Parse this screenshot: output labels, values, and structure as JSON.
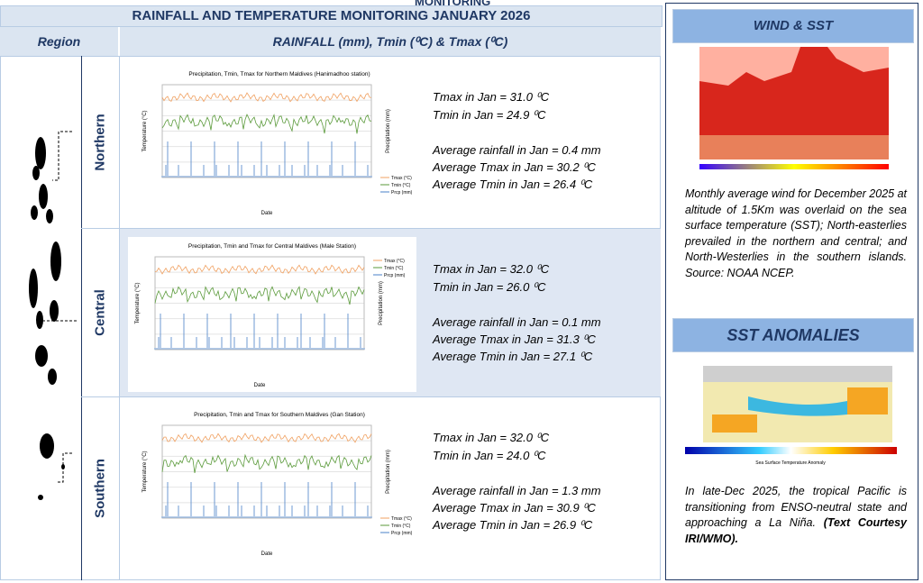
{
  "header": {
    "cut_title": "MONITORING",
    "title": "RAINFALL AND TEMPERATURE MONITORING JANUARY 2026",
    "region_col": "Region",
    "data_col": "RAINFALL (mm), Tmin (⁰C) & Tmax (⁰C)"
  },
  "regions": [
    {
      "name": "Northern",
      "chart_title": "Precipitation, Tmin, Tmax for Northern Maldives (Hanimadhoo station)",
      "chart_x_label": "Date",
      "chart_y_label": "Temperature (°C)",
      "chart_y2_label": "Precipitation (mm)",
      "chart_legend": [
        "Tmax (°C)",
        "Tmin (°C)",
        "Prcp (mm)"
      ],
      "stats": [
        "Tmax in Jan = 31.0 ⁰C",
        "Tmin in Jan = 24.9 ⁰C",
        "Average rainfall in Jan = 0.4 mm",
        "Average Tmax in Jan = 30.2 ⁰C",
        "Average Tmin in Jan = 26.4 ⁰C"
      ]
    },
    {
      "name": "Central",
      "chart_title": "Precipitation, Tmin and Tmax for Central Maldives (Male Station)",
      "chart_x_label": "Date",
      "chart_y_label": "Temperature (°C)",
      "chart_y2_label": "Precipitation (mm)",
      "chart_legend": [
        "Tmax (°C)",
        "Tmin (°C)",
        "Prcp (mm)"
      ],
      "stats": [
        "Tmax in Jan = 32.0 ⁰C",
        "Tmin in Jan = 26.0 ⁰C",
        "Average rainfall in Jan = 0.1 mm",
        "Average Tmax in Jan = 31.3 ⁰C",
        "Average Tmin in Jan = 27.1 ⁰C"
      ]
    },
    {
      "name": "Southern",
      "chart_title": "Precipitation, Tmin and Tmax for Southern Maldives (Gan Station)",
      "chart_x_label": "Date",
      "chart_y_label": "Temperature (°C)",
      "chart_y2_label": "Precipitation (mm)",
      "chart_legend": [
        "Tmax (°C)",
        "Tmin (°C)",
        "Prcp (mm)"
      ],
      "stats": [
        "Tmax in Jan = 32.0 ⁰C",
        "Tmin in Jan = 24.0 ⁰C",
        "Average rainfall in Jan = 1.3 mm",
        "Average Tmax in Jan = 30.9 ⁰C",
        "Average Tmin in Jan = 26.9 ⁰C"
      ]
    }
  ],
  "sidebar": {
    "wind_title": "WIND & SST",
    "wind_text": "Monthly average wind for December 2025 at altitude of 1.5Km was overlaid on the sea surface temperature (SST); North-easterlies prevailed in the northern and central; and North-Westerlies in the southern islands. Source: NOAA NCEP.",
    "sst_title": "SST ANOMALIES",
    "sst_caption": "Sea Surface Temperature Anomaly",
    "sst_text": "In late-Dec 2025, the tropical Pacific is transitioning from ENSO-neutral state and approaching a La Niña.",
    "sst_credit": "(Text Courtesy IRI/WMO)."
  }
}
